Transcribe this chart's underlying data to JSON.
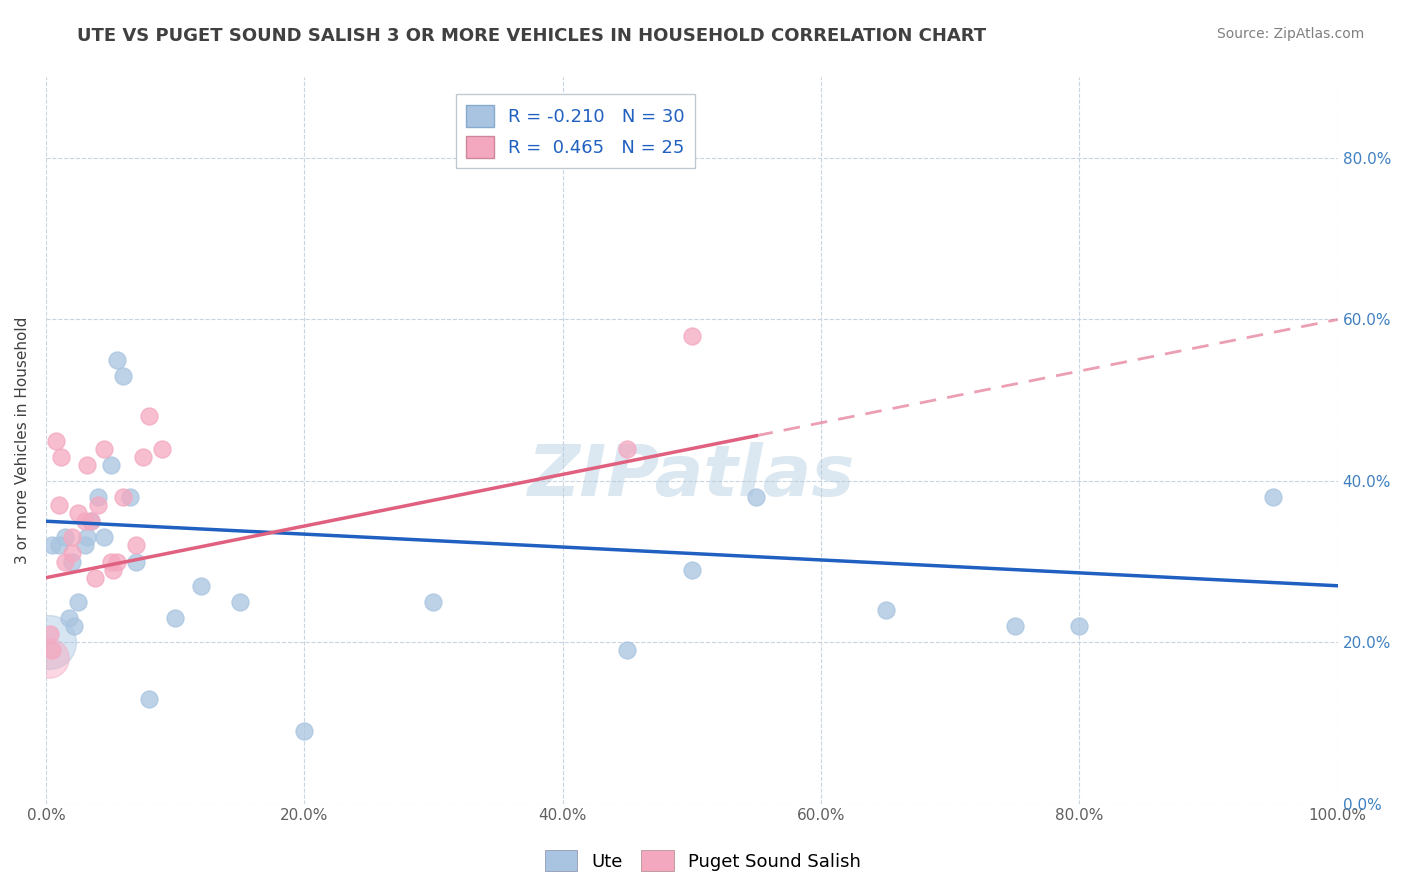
{
  "title": "UTE VS PUGET SOUND SALISH 3 OR MORE VEHICLES IN HOUSEHOLD CORRELATION CHART",
  "source": "Source: ZipAtlas.com",
  "ylabel": "3 or more Vehicles in Household",
  "xlim": [
    0,
    100
  ],
  "ylim": [
    0,
    90
  ],
  "ute_R": -0.21,
  "ute_N": 30,
  "ps_R": 0.465,
  "ps_N": 25,
  "ute_color": "#a8c4e0",
  "ps_color": "#f4a8c0",
  "ute_line_color": "#2060c0",
  "ps_line_color": "#e06080",
  "watermark": "ZIPatlas",
  "ute_x": [
    0.5,
    1.0,
    1.5,
    1.8,
    2.0,
    2.2,
    2.5,
    3.0,
    3.2,
    3.5,
    4.0,
    4.5,
    5.0,
    5.5,
    6.0,
    6.5,
    7.0,
    8.0,
    10.0,
    12.0,
    15.0,
    20.0,
    30.0,
    45.0,
    50.0,
    55.0,
    65.0,
    75.0,
    80.0,
    95.0
  ],
  "ute_y": [
    32.0,
    32.0,
    33.0,
    23.0,
    30.0,
    22.0,
    25.0,
    32.0,
    33.0,
    35.0,
    38.0,
    33.0,
    42.0,
    55.0,
    53.0,
    38.0,
    30.0,
    13.0,
    23.0,
    27.0,
    25.0,
    9.0,
    25.0,
    19.0,
    29.0,
    38.0,
    24.0,
    22.0,
    22.0,
    38.0
  ],
  "ute_sizes": [
    150,
    150,
    150,
    150,
    150,
    150,
    150,
    150,
    150,
    150,
    150,
    150,
    150,
    150,
    150,
    150,
    150,
    150,
    150,
    150,
    150,
    150,
    150,
    150,
    150,
    150,
    150,
    150,
    150,
    150
  ],
  "ps_x": [
    0.3,
    0.5,
    1.0,
    1.5,
    2.0,
    2.5,
    3.0,
    3.2,
    3.5,
    4.0,
    4.5,
    5.0,
    5.5,
    6.0,
    7.0,
    8.0,
    9.0,
    0.8,
    1.2,
    2.0,
    3.8,
    5.2,
    7.5,
    45.0,
    50.0
  ],
  "ps_y": [
    21.0,
    19.0,
    37.0,
    30.0,
    33.0,
    36.0,
    35.0,
    42.0,
    35.0,
    37.0,
    44.0,
    30.0,
    30.0,
    38.0,
    32.0,
    48.0,
    44.0,
    45.0,
    43.0,
    31.0,
    28.0,
    29.0,
    43.0,
    44.0,
    58.0
  ],
  "ps_sizes": [
    150,
    150,
    150,
    150,
    150,
    150,
    150,
    150,
    150,
    150,
    150,
    150,
    150,
    150,
    150,
    150,
    150,
    150,
    150,
    150,
    150,
    150,
    150,
    150,
    150
  ],
  "ute_big_bubble_x": [
    0.2
  ],
  "ute_big_bubble_y": [
    20.0
  ],
  "ute_big_bubble_size": [
    1500
  ],
  "ps_big_bubble_x": [
    0.2
  ],
  "ps_big_bubble_y": [
    18.0
  ],
  "ps_big_bubble_size": [
    800
  ],
  "ytick_labels": [
    "0.0%",
    "20.0%",
    "40.0%",
    "60.0%",
    "80.0%"
  ],
  "ytick_values": [
    0,
    20,
    40,
    60,
    80
  ],
  "xtick_labels": [
    "0.0%",
    "20.0%",
    "40.0%",
    "60.0%",
    "80.0%",
    "100.0%"
  ],
  "xtick_values": [
    0,
    20,
    40,
    60,
    80,
    100
  ],
  "grid_color": "#c8d4e0",
  "background_color": "#ffffff",
  "title_color": "#404040",
  "source_color": "#808080",
  "ps_line_intercept": 28.0,
  "ps_line_slope": 0.32,
  "ute_line_intercept": 35.0,
  "ute_line_slope": -0.08,
  "ps_solid_end": 55.0,
  "ps_dashed_end": 100.0
}
